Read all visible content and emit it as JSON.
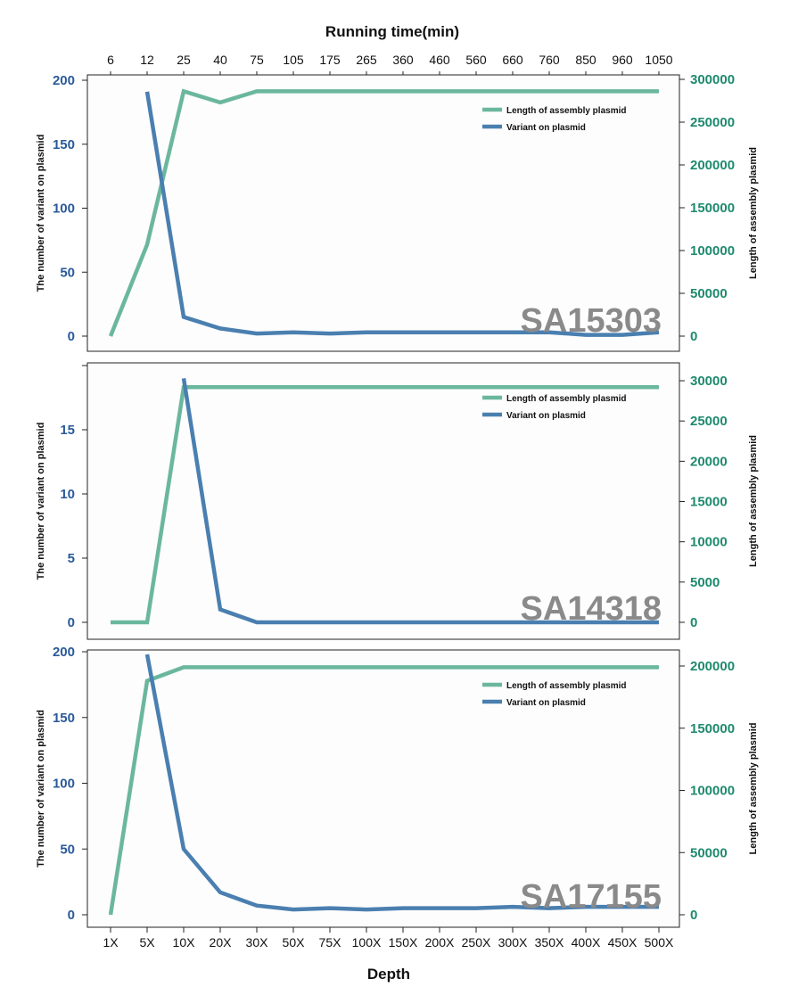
{
  "top_axis": {
    "title": "Running time(min)",
    "ticks": [
      "6",
      "12",
      "25",
      "40",
      "75",
      "105",
      "175",
      "265",
      "360",
      "460",
      "560",
      "660",
      "760",
      "850",
      "960",
      "1050"
    ]
  },
  "bottom_axis": {
    "title": "Depth",
    "ticks": [
      "1X",
      "5X",
      "10X",
      "20X",
      "30X",
      "50X",
      "75X",
      "100X",
      "150X",
      "200X",
      "250X",
      "300X",
      "350X",
      "400X",
      "450X",
      "500X"
    ]
  },
  "colors": {
    "variant": "#4a7fb0",
    "length": "#6bb79e",
    "left_axis_text": "#2a5a9a",
    "right_axis_text": "#1e8a6e",
    "panel_bg": "#fdfdfd",
    "label": "#8a8a8a"
  },
  "chart_data": [
    {
      "type": "line",
      "panel_label": "SA15303",
      "x": [
        "1X",
        "5X",
        "10X",
        "20X",
        "30X",
        "50X",
        "75X",
        "100X",
        "150X",
        "200X",
        "250X",
        "300X",
        "350X",
        "400X",
        "450X",
        "500X"
      ],
      "ylabel_left": "The number of variant on plasmid",
      "ylabel_right": "Length of assembly plasmid",
      "ylim_left": [
        0,
        200
      ],
      "yticks_left": [
        0,
        50,
        100,
        150,
        200
      ],
      "ylim_right": [
        0,
        300000
      ],
      "yticks_right": [
        0,
        50000,
        100000,
        150000,
        200000,
        250000,
        300000
      ],
      "legend": "top-right",
      "series": [
        {
          "name": "Length of assembly plasmid",
          "axis": "right",
          "values": [
            0,
            107000,
            286000,
            273000,
            286000,
            286000,
            286000,
            286000,
            286000,
            286000,
            286000,
            286000,
            286000,
            286000,
            286000,
            286000
          ]
        },
        {
          "name": "Variant on plasmid",
          "axis": "left",
          "values": [
            null,
            191,
            15,
            6,
            2,
            3,
            2,
            3,
            3,
            3,
            3,
            3,
            3,
            1,
            1,
            3
          ]
        }
      ]
    },
    {
      "type": "line",
      "panel_label": "SA14318",
      "x": [
        "1X",
        "5X",
        "10X",
        "20X",
        "30X",
        "50X",
        "75X",
        "100X",
        "150X",
        "200X",
        "250X",
        "300X",
        "350X",
        "400X",
        "450X",
        "500X"
      ],
      "ylabel_left": "The number of variant on plasmid",
      "ylabel_right": "Length of assembly plasmid",
      "ylim_left": [
        0,
        20
      ],
      "yticks_left": [
        0,
        5,
        10,
        15
      ],
      "ylim_right": [
        0,
        31000
      ],
      "yticks_right": [
        0,
        5000,
        10000,
        15000,
        20000,
        25000,
        30000
      ],
      "legend": "top-right",
      "series": [
        {
          "name": "Length of assembly plasmid",
          "axis": "right",
          "values": [
            0,
            0,
            29200,
            29200,
            29200,
            29200,
            29200,
            29200,
            29200,
            29200,
            29200,
            29200,
            29200,
            29200,
            29200,
            29200
          ]
        },
        {
          "name": "Variant on plasmid",
          "axis": "left",
          "values": [
            null,
            null,
            19,
            1,
            0,
            0,
            0,
            0,
            0,
            0,
            0,
            0,
            0,
            0,
            0,
            0
          ]
        }
      ]
    },
    {
      "type": "line",
      "panel_label": "SA17155",
      "x": [
        "1X",
        "5X",
        "10X",
        "20X",
        "30X",
        "50X",
        "75X",
        "100X",
        "150X",
        "200X",
        "250X",
        "300X",
        "350X",
        "400X",
        "450X",
        "500X"
      ],
      "ylabel_left": "The number of variant on plasmid",
      "ylabel_right": "Length of assembly plasmid",
      "ylim_left": [
        0,
        200
      ],
      "yticks_left": [
        0,
        50,
        100,
        150,
        200
      ],
      "ylim_right": [
        0,
        200000
      ],
      "yticks_right": [
        0,
        50000,
        100000,
        150000,
        200000
      ],
      "legend": "top-right",
      "series": [
        {
          "name": "Length of assembly plasmid",
          "axis": "right",
          "values": [
            0,
            188000,
            199000,
            199000,
            199000,
            199000,
            199000,
            199000,
            199000,
            199000,
            199000,
            199000,
            199000,
            199000,
            199000,
            199000
          ]
        },
        {
          "name": "Variant on plasmid",
          "axis": "left",
          "values": [
            null,
            198,
            50,
            17,
            7,
            4,
            5,
            4,
            5,
            5,
            5,
            6,
            5,
            6,
            6,
            6
          ]
        }
      ]
    }
  ]
}
